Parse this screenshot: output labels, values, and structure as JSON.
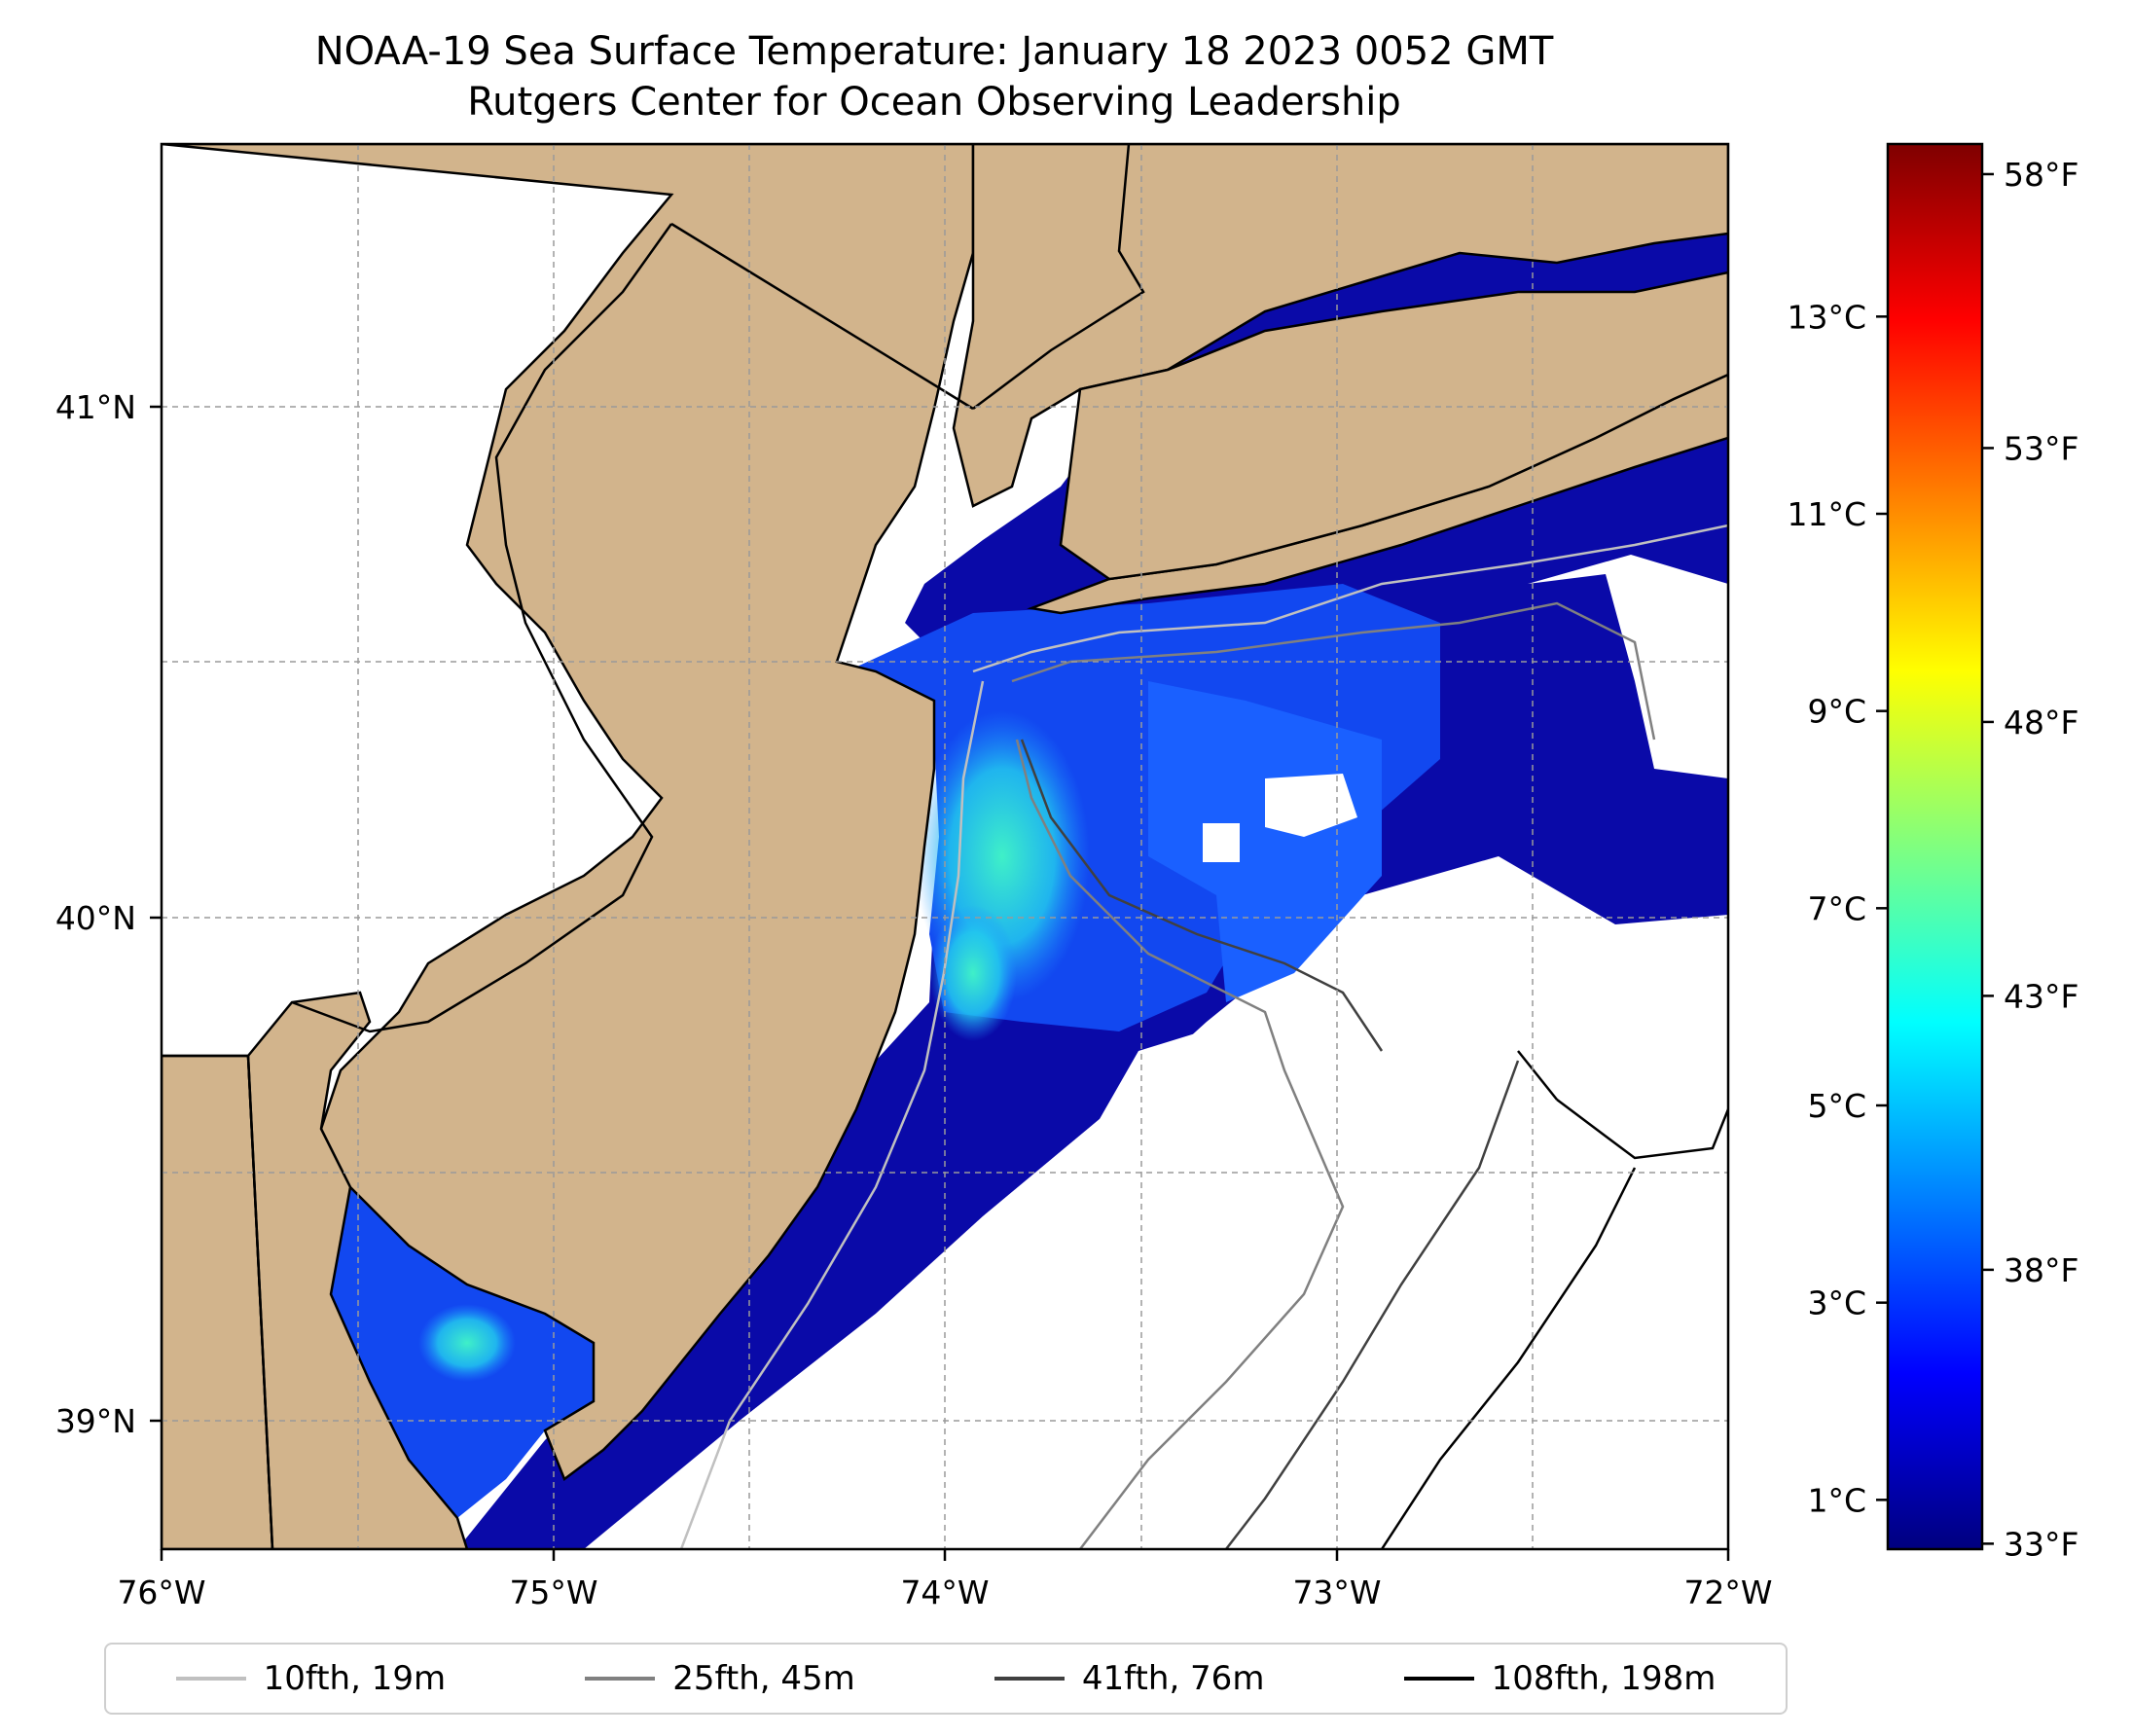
{
  "title": {
    "line1": "NOAA-19 Sea Surface Temperature: January 18 2023 0052 GMT",
    "line2": "Rutgers Center for Ocean Observing Leadership"
  },
  "map": {
    "lon_range": [
      -76,
      -72
    ],
    "lat_range": [
      38.72,
      41.52
    ],
    "land_color": "#d2b48c",
    "no_data_color": "#ffffff",
    "gridlines": "dashed",
    "x_tick_labels": [
      "76°W",
      "75°W",
      "74°W",
      "73°W",
      "72°W"
    ],
    "y_tick_labels": [
      "41°N",
      "40°N",
      "39°N"
    ]
  },
  "colorbar": {
    "colormap": "jet",
    "celsius_range": [
      0.5,
      14.75
    ],
    "celsius_labels": [
      "13°C",
      "11°C",
      "9°C",
      "7°C",
      "5°C",
      "3°C",
      "1°C"
    ],
    "fahrenheit_labels": [
      "58°F",
      "53°F",
      "48°F",
      "43°F",
      "38°F",
      "33°F"
    ]
  },
  "legend": {
    "items": [
      {
        "label": "10fth, 19m",
        "color": "#c0c0c0"
      },
      {
        "label": "25fth, 45m",
        "color": "#808080"
      },
      {
        "label": "41fth, 76m",
        "color": "#404040"
      },
      {
        "label": "108fth, 198m",
        "color": "#000000"
      }
    ]
  }
}
